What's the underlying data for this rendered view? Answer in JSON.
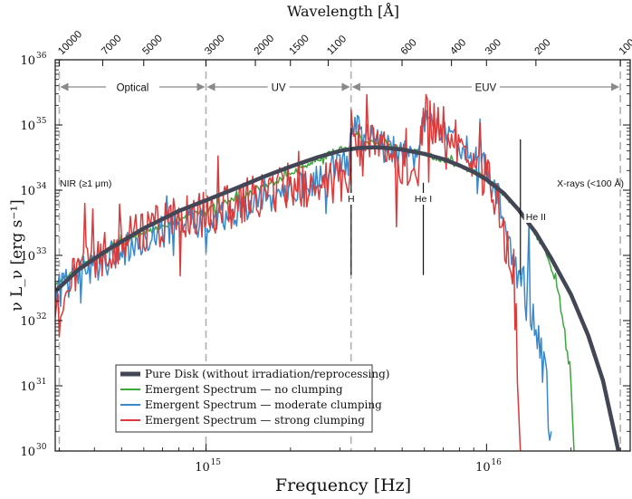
{
  "chart_data": {
    "type": "line",
    "title": "",
    "xlabel": "Frequency [Hz]",
    "ylabel": "ν L_ν [erg s⁻¹]",
    "top_axis_label": "Wavelength [Å]",
    "x_scale": "log",
    "y_scale": "log",
    "xlim": [
      290000000000000.0,
      3.25e+16
    ],
    "ylim": [
      1e+30,
      1e+36
    ],
    "x_ticks": [
      {
        "value": 1000000000000000.0,
        "base": "10",
        "exp": "15"
      },
      {
        "value": 1e+16,
        "base": "10",
        "exp": "16"
      }
    ],
    "y_ticks": [
      {
        "value": 1e+30,
        "base": "10",
        "exp": "30"
      },
      {
        "value": 1e+31,
        "base": "10",
        "exp": "31"
      },
      {
        "value": 1e+32,
        "base": "10",
        "exp": "32"
      },
      {
        "value": 1e+33,
        "base": "10",
        "exp": "33"
      },
      {
        "value": 1e+34,
        "base": "10",
        "exp": "34"
      },
      {
        "value": 1e+35,
        "base": "10",
        "exp": "35"
      },
      {
        "value": 1e+36,
        "base": "10",
        "exp": "36"
      }
    ],
    "top_ticks": [
      {
        "angstrom": 10000,
        "label": "10000"
      },
      {
        "angstrom": 7000,
        "label": "7000"
      },
      {
        "angstrom": 5000,
        "label": "5000"
      },
      {
        "angstrom": 3000,
        "label": "3000"
      },
      {
        "angstrom": 2000,
        "label": "2000"
      },
      {
        "angstrom": 1500,
        "label": "1500"
      },
      {
        "angstrom": 1100,
        "label": "1100"
      },
      {
        "angstrom": 600,
        "label": "600"
      },
      {
        "angstrom": 400,
        "label": "400"
      },
      {
        "angstrom": 300,
        "label": "300"
      },
      {
        "angstrom": 200,
        "label": "200"
      },
      {
        "angstrom": 100,
        "label": "100"
      }
    ],
    "region_boundaries_angstrom": [
      10000,
      3000,
      912,
      100
    ],
    "regions": [
      {
        "label": "Optical",
        "from_angstrom": 10000,
        "to_angstrom": 3000
      },
      {
        "label": "UV",
        "from_angstrom": 3000,
        "to_angstrom": 912
      },
      {
        "label": "EUV",
        "from_angstrom": 912,
        "to_angstrom": 100
      }
    ],
    "edge_annotations": [
      {
        "label": "NIR (≥1 μm)",
        "side": "left"
      },
      {
        "label": "X-rays (<100 Å)",
        "side": "right"
      }
    ],
    "ionization_edges": [
      {
        "label": "H",
        "freq": 3290000000000000.0,
        "y_top": 9e+34,
        "y_bottom": 5e+32
      },
      {
        "label": "He I",
        "freq": 5950000000000000.0,
        "y_top": 1.3e+34,
        "y_bottom": 5e+32
      },
      {
        "label": "He II",
        "freq": 1.32e+16,
        "y_top": 6e+34,
        "y_bottom": 5e+32
      }
    ],
    "legend_position": "bottom-left",
    "series": [
      {
        "name": "Pure Disk (without irradiation/reprocessing)",
        "color": "#424655",
        "noise": 0,
        "points": [
          [
            290000000000000.0,
            2.8e+32
          ],
          [
            350000000000000.0,
            6e+32
          ],
          [
            450000000000000.0,
            1.25e+33
          ],
          [
            600000000000000.0,
            2.6e+33
          ],
          [
            800000000000000.0,
            4.8e+33
          ],
          [
            1000000000000000.0,
            7e+33
          ],
          [
            1300000000000000.0,
            1.1e+34
          ],
          [
            1600000000000000.0,
            1.6e+34
          ],
          [
            2000000000000000.0,
            2.3e+34
          ],
          [
            2500000000000000.0,
            3.2e+34
          ],
          [
            3000000000000000.0,
            4e+34
          ],
          [
            3500000000000000.0,
            4.45e+34
          ],
          [
            4000000000000000.0,
            4.55e+34
          ],
          [
            4500000000000000.0,
            4.4e+34
          ],
          [
            5000000000000000.0,
            4.2e+34
          ],
          [
            6000000000000000.0,
            3.6e+34
          ],
          [
            7000000000000000.0,
            3e+34
          ],
          [
            8000000000000000.0,
            2.4e+34
          ],
          [
            9000000000000000.0,
            1.9e+34
          ],
          [
            1e+16,
            1.45e+34
          ],
          [
            1.15e+16,
            9e+33
          ],
          [
            1.3e+16,
            5e+33
          ],
          [
            1.5e+16,
            2.2e+33
          ],
          [
            1.7e+16,
            9e+32
          ],
          [
            2e+16,
            2.5e+32
          ],
          [
            2.3e+16,
            6e+31
          ],
          [
            2.6e+16,
            1.2e+31
          ],
          [
            2.85e+16,
            2e+30
          ],
          [
            2.95e+16,
            1e+30
          ]
        ]
      },
      {
        "name": "Emergent Spectrum — no clumping",
        "color": "#3aa83a",
        "noise": 0.05,
        "points": [
          [
            290000000000000.0,
            3.5e+32
          ],
          [
            350000000000000.0,
            6.5e+32
          ],
          [
            450000000000000.0,
            1.2e+33
          ],
          [
            600000000000000.0,
            2.2e+33
          ],
          [
            800000000000000.0,
            3.6e+33
          ],
          [
            1000000000000000.0,
            5e+33
          ],
          [
            1300000000000000.0,
            7.5e+33
          ],
          [
            1600000000000000.0,
            1.1e+34
          ],
          [
            2000000000000000.0,
            1.8e+34
          ],
          [
            2500000000000000.0,
            3e+34
          ],
          [
            3000000000000000.0,
            4.2e+34
          ],
          [
            3250000000000000.0,
            4.5e+34
          ],
          [
            3290000000000000.0,
            8e+34
          ],
          [
            3400000000000000.0,
            7.5e+34
          ],
          [
            3800000000000000.0,
            5.5e+34
          ],
          [
            4500000000000000.0,
            4.8e+34
          ],
          [
            5000000000000000.0,
            4.2e+34
          ],
          [
            6000000000000000.0,
            3.6e+34
          ],
          [
            7000000000000000.0,
            3e+34
          ],
          [
            8000000000000000.0,
            2.4e+34
          ],
          [
            9000000000000000.0,
            1.9e+34
          ],
          [
            1e+16,
            1.5e+34
          ],
          [
            1.15e+16,
            9e+33
          ],
          [
            1.3e+16,
            5e+33
          ],
          [
            1.5e+16,
            2e+33
          ],
          [
            1.65e+16,
            1e+33
          ],
          [
            1.8e+16,
            3e+32
          ],
          [
            1.9e+16,
            6e+31
          ],
          [
            2e+16,
            1e+31
          ],
          [
            2.05e+16,
            1e+30
          ]
        ]
      },
      {
        "name": "Emergent Spectrum — moderate clumping",
        "color": "#3a88c8",
        "noise": 0.25,
        "points": [
          [
            290000000000000.0,
            2.5e+32
          ],
          [
            350000000000000.0,
            5e+32
          ],
          [
            450000000000000.0,
            9e+32
          ],
          [
            600000000000000.0,
            1.8e+33
          ],
          [
            800000000000000.0,
            2.8e+33
          ],
          [
            1000000000000000.0,
            3.5e+33
          ],
          [
            1300000000000000.0,
            5e+33
          ],
          [
            1600000000000000.0,
            7e+33
          ],
          [
            2000000000000000.0,
            1e+34
          ],
          [
            2500000000000000.0,
            1.5e+34
          ],
          [
            3000000000000000.0,
            2.3e+34
          ],
          [
            3250000000000000.0,
            3e+34
          ],
          [
            3290000000000000.0,
            1e+35
          ],
          [
            3500000000000000.0,
            8e+34
          ],
          [
            4000000000000000.0,
            5e+34
          ],
          [
            4500000000000000.0,
            4e+34
          ],
          [
            5000000000000000.0,
            3.5e+34
          ],
          [
            5700000000000000.0,
            3e+34
          ],
          [
            5950000000000000.0,
            1.2e+35
          ],
          [
            6500000000000000.0,
            9e+34
          ],
          [
            7500000000000000.0,
            6e+34
          ],
          [
            8500000000000000.0,
            4e+34
          ],
          [
            1e+16,
            2e+34
          ],
          [
            1.1e+16,
            8e+33
          ],
          [
            1.2e+16,
            2e+33
          ],
          [
            1.3e+16,
            4e+32
          ],
          [
            1.4e+16,
            2e+32
          ],
          [
            1.5e+16,
            1e+32
          ],
          [
            1.6e+16,
            2e+31
          ],
          [
            1.7e+16,
            2e+30
          ]
        ]
      },
      {
        "name": "Emergent Spectrum — strong clumping",
        "color": "#d93a3a",
        "noise": 0.35,
        "points": [
          [
            290000000000000.0,
            2e+32
          ],
          [
            350000000000000.0,
            6e+32
          ],
          [
            450000000000000.0,
            1.2e+33
          ],
          [
            600000000000000.0,
            2.4e+33
          ],
          [
            800000000000000.0,
            3.6e+33
          ],
          [
            1000000000000000.0,
            4.2e+33
          ],
          [
            1300000000000000.0,
            6e+33
          ],
          [
            1600000000000000.0,
            9e+33
          ],
          [
            2000000000000000.0,
            1.2e+34
          ],
          [
            2500000000000000.0,
            1.2e+34
          ],
          [
            3000000000000000.0,
            1.4e+34
          ],
          [
            3250000000000000.0,
            1.6e+34
          ],
          [
            3290000000000000.0,
            9e+34
          ],
          [
            3500000000000000.0,
            7e+34
          ],
          [
            4000000000000000.0,
            5e+34
          ],
          [
            4500000000000000.0,
            3.5e+34
          ],
          [
            5000000000000000.0,
            2.5e+34
          ],
          [
            5700000000000000.0,
            1.5e+34
          ],
          [
            5950000000000000.0,
            1.5e+35
          ],
          [
            6500000000000000.0,
            1.1e+35
          ],
          [
            7500000000000000.0,
            7e+34
          ],
          [
            8500000000000000.0,
            4e+34
          ],
          [
            1e+16,
            1.5e+34
          ],
          [
            1.1e+16,
            5e+33
          ],
          [
            1.2e+16,
            1e+33
          ],
          [
            1.25e+16,
            3e+32
          ],
          [
            1.3e+16,
            1e+31
          ],
          [
            1.32e+16,
            1e+30
          ]
        ]
      }
    ]
  }
}
